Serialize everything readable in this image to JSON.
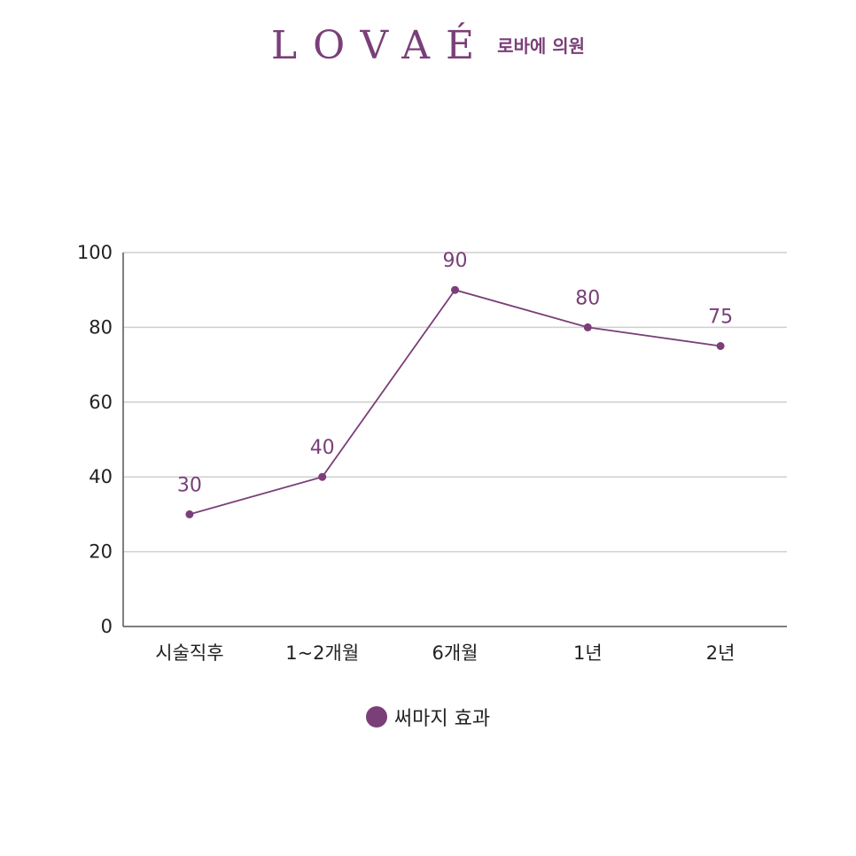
{
  "brand": {
    "logo_text": "LOVAÉ",
    "sub_text": "로바에 의원"
  },
  "colors": {
    "series": "#7a3f78",
    "grid": "#cfcfcf",
    "axis": "#555555"
  },
  "chart_data": {
    "type": "line",
    "categories": [
      "시술직후",
      "1~2개월",
      "6개월",
      "1년",
      "2년"
    ],
    "series": [
      {
        "name": "써마지 효과",
        "values": [
          30,
          40,
          90,
          80,
          75
        ]
      }
    ],
    "data_labels": [
      "30",
      "40",
      "90",
      "80",
      "75"
    ],
    "yticks": [
      "0",
      "20",
      "40",
      "60",
      "80",
      "100"
    ],
    "ylim": [
      0,
      100
    ],
    "grid": true,
    "legend": "bottom-center"
  }
}
